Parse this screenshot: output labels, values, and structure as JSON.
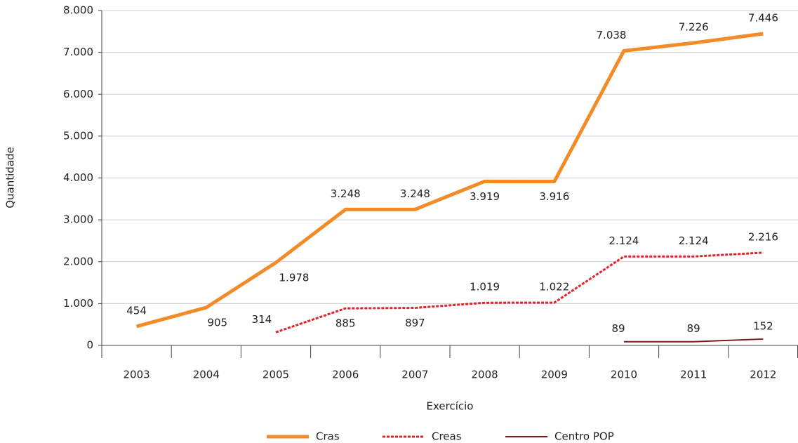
{
  "chart_data": {
    "type": "line",
    "x_label": "Exercício",
    "y_label": "Quantidade",
    "categories": [
      "2003",
      "2004",
      "2005",
      "2006",
      "2007",
      "2008",
      "2009",
      "2010",
      "2011",
      "2012"
    ],
    "ylim": [
      0,
      8000
    ],
    "yticks": [
      0,
      {
        "value": 1000,
        "label": "1.000"
      },
      {
        "value": 2000,
        "label": "2.000"
      },
      {
        "value": 3000,
        "label": "3.000"
      },
      {
        "value": 4000,
        "label": "4.000"
      },
      {
        "value": 5000,
        "label": "5.000"
      },
      {
        "value": 6000,
        "label": "6.000"
      },
      {
        "value": 7000,
        "label": "7.000"
      },
      {
        "value": 8000,
        "label": "8.000"
      }
    ],
    "grid": true,
    "legend": "bottom",
    "series": [
      {
        "name": "Cras",
        "color": "#f28c28",
        "style": "solid",
        "values": [
          454,
          905,
          1978,
          3248,
          3248,
          3919,
          3916,
          7038,
          7226,
          7446
        ],
        "value_labels": [
          "454",
          "905",
          "1.978",
          "3.248",
          "3.248",
          "3.919",
          "3.916",
          "7.038",
          "7.226",
          "7.446"
        ]
      },
      {
        "name": "Creas",
        "color": "#e8202a",
        "style": "dashed",
        "values": [
          null,
          null,
          314,
          885,
          897,
          1019,
          1022,
          2124,
          2124,
          2216
        ],
        "value_labels": [
          null,
          null,
          "314",
          "885",
          "897",
          "1.019",
          "1.022",
          "2.124",
          "2.124",
          "2.216"
        ]
      },
      {
        "name": "Centro POP",
        "color": "#7b1a1a",
        "style": "solid",
        "values": [
          null,
          null,
          null,
          null,
          null,
          null,
          null,
          89,
          89,
          152
        ],
        "value_labels": [
          null,
          null,
          null,
          null,
          null,
          null,
          null,
          "89",
          "89",
          "152"
        ]
      }
    ]
  }
}
